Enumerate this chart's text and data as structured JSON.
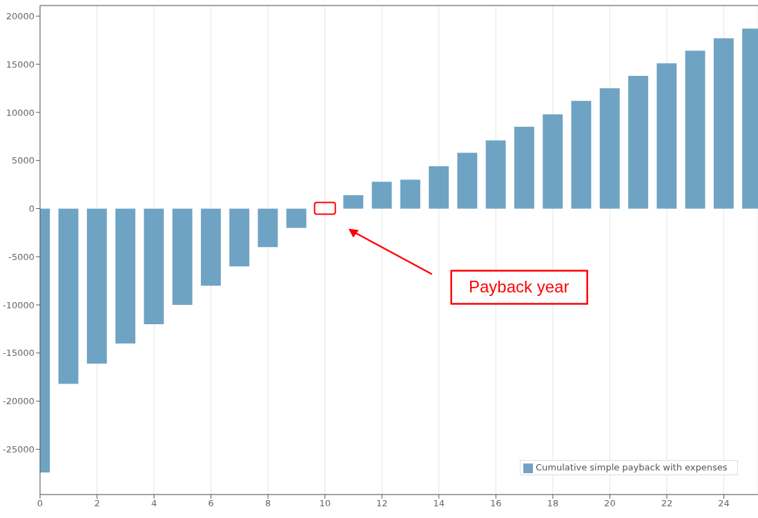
{
  "chart_data": {
    "type": "bar",
    "x": [
      0,
      1,
      2,
      3,
      4,
      5,
      6,
      7,
      8,
      9,
      10,
      11,
      12,
      13,
      14,
      15,
      16,
      17,
      18,
      19,
      20,
      21,
      22,
      23,
      24,
      25
    ],
    "series": [
      {
        "name": "Cumulative simple payback with expenses",
        "color": "#6fa3c4",
        "values": [
          -27400,
          -18200,
          -16100,
          -14000,
          -12000,
          -10000,
          -8000,
          -6000,
          -4000,
          -2000,
          0,
          1400,
          2800,
          3000,
          4400,
          5800,
          7100,
          8500,
          9800,
          11200,
          12500,
          13800,
          15100,
          16400,
          17700,
          18700
        ]
      }
    ],
    "xlim": [
      0,
      25.2
    ],
    "xticks": [
      0,
      2,
      4,
      6,
      8,
      10,
      12,
      14,
      16,
      18,
      20,
      22,
      24
    ],
    "ylim": [
      -29700,
      21100
    ],
    "yticks": [
      -25000,
      -20000,
      -15000,
      -10000,
      -5000,
      0,
      5000,
      10000,
      15000,
      20000
    ],
    "grid": true,
    "legend": "bottom right",
    "annotations": [
      "Payback year"
    ]
  }
}
